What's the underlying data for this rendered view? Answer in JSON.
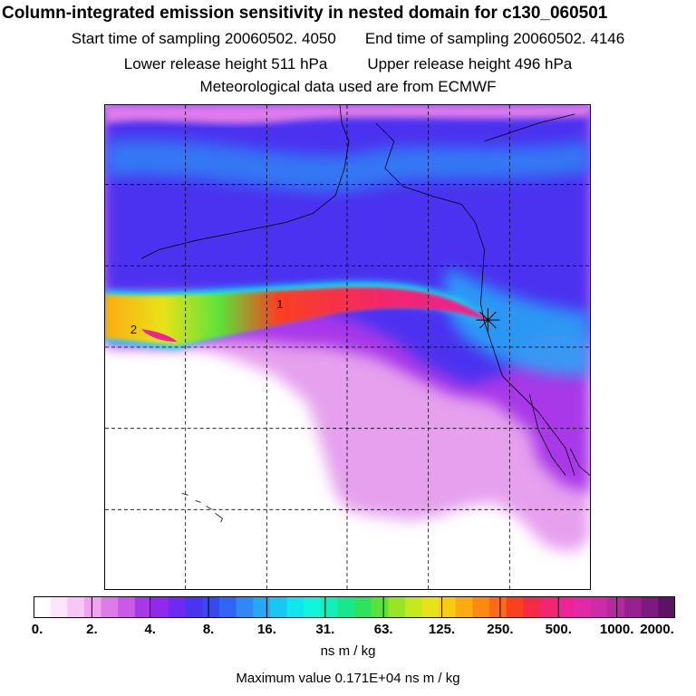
{
  "title": "Column-integrated emission sensitivity in nested domain for c130_060501",
  "start_time": "Start time of sampling 20060502.  4050",
  "end_time": "End time of sampling 20060502.  4146",
  "lower_height": "Lower release height  511 hPa",
  "upper_height": "Upper release height  496 hPa",
  "met_data": "Meteorological data used are from ECMWF",
  "map": {
    "labels": [
      "1",
      "2"
    ],
    "release_marker": "asterisk-marker"
  },
  "colorbar": {
    "ticks": [
      "0.",
      "2.",
      "4.",
      "8.",
      "16.",
      "31.",
      "63.",
      "125.",
      "250.",
      "500.",
      "1000.",
      "2000."
    ],
    "colors": [
      "#ffffff",
      "#fde6fb",
      "#f7c7f5",
      "#f0a4f0",
      "#df7be9",
      "#c85ae6",
      "#a838e8",
      "#8f29ec",
      "#6e2af0",
      "#4c33f0",
      "#3a48f2",
      "#2f66f5",
      "#2f88f6",
      "#25a9f6",
      "#17c8f2",
      "#10e6ee",
      "#0ff6dc",
      "#10f0b8",
      "#18e88d",
      "#2ee25e",
      "#5be23a",
      "#97e526",
      "#c6e81e",
      "#e8e218",
      "#f8cc12",
      "#fdab10",
      "#fd8a10",
      "#fb6a14",
      "#f9401f",
      "#f52a45",
      "#f22570",
      "#ef2296",
      "#e22aa8",
      "#cd2ba8",
      "#b22aa0",
      "#962290",
      "#7b1b7e",
      "#5d1264"
    ],
    "unit": "ns m / kg"
  },
  "max_value": "Maximum value  0.171E+04 ns m / kg"
}
